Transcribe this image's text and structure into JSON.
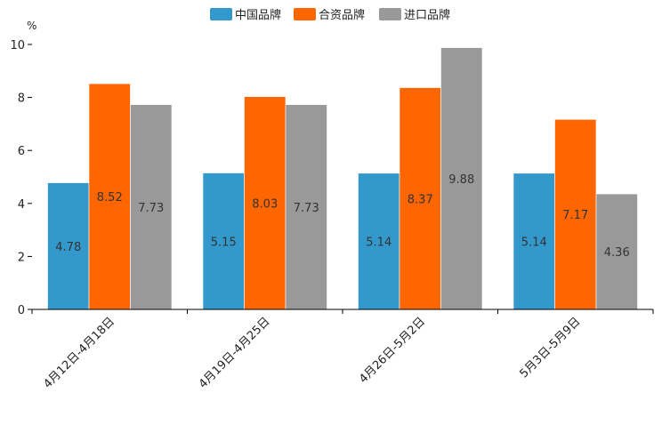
{
  "chart_data": {
    "type": "bar",
    "title": "",
    "xlabel": "",
    "ylabel": "%",
    "ylim": [
      0,
      10
    ],
    "yticks": [
      0,
      2,
      4,
      6,
      8,
      10
    ],
    "grid": false,
    "legend_position": "top-center",
    "categories": [
      "4月12日-4月18日",
      "4月19日-4月25日",
      "4月26日-5月2日",
      "5月3日-5月9日"
    ],
    "series": [
      {
        "name": "中国品牌",
        "color": "#3399cc",
        "values": [
          4.78,
          5.15,
          5.14,
          5.14
        ],
        "labels": [
          "4.78",
          "5.15",
          "5.14",
          "5.14"
        ]
      },
      {
        "name": "合资品牌",
        "color": "#ff6600",
        "values": [
          8.52,
          8.03,
          8.37,
          7.17
        ],
        "labels": [
          "8.52",
          "8.03",
          "8.37",
          "7.17"
        ]
      },
      {
        "name": "进口品牌",
        "color": "#999999",
        "values": [
          7.73,
          7.73,
          9.88,
          4.36
        ],
        "labels": [
          "7.73",
          "7.73",
          "9.88",
          "4.36"
        ]
      }
    ]
  }
}
